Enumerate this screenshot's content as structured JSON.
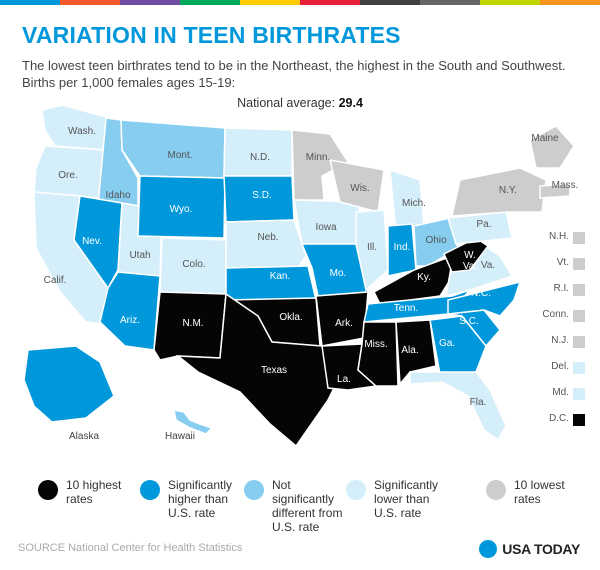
{
  "colors": {
    "highest": "#050505",
    "higher": "#0098db",
    "not_different": "#86cdf0",
    "lower": "#d4eefa",
    "lowest": "#cdcdcd",
    "title": "#0098db",
    "topbar": [
      "#0098db",
      "#f1592a",
      "#6d4ea0",
      "#00a859",
      "#ffcb05",
      "#e61e3c",
      "#414042",
      "#666666",
      "#c2d500",
      "#f7941d"
    ]
  },
  "header": {
    "title": "VARIATION IN TEEN BIRTHRATES",
    "subtitle_line1": "The lowest teen birthrates tend to be in the Northeast, the highest in the South and Southwest.",
    "subtitle_line2": "Births per 1,000 females ages 15-19:"
  },
  "national_average": {
    "label": "National average:",
    "value": "29.4"
  },
  "states": [
    {
      "label": "Wash.",
      "category": "lower"
    },
    {
      "label": "Ore.",
      "category": "lower"
    },
    {
      "label": "Calif.",
      "category": "lower"
    },
    {
      "label": "Idaho",
      "category": "not_different"
    },
    {
      "label": "Nev.",
      "category": "higher"
    },
    {
      "label": "Utah",
      "category": "lower"
    },
    {
      "label": "Ariz.",
      "category": "higher"
    },
    {
      "label": "Mont.",
      "category": "not_different"
    },
    {
      "label": "Wyo.",
      "category": "higher"
    },
    {
      "label": "Colo.",
      "category": "lower"
    },
    {
      "label": "N.M.",
      "category": "highest"
    },
    {
      "label": "N.D.",
      "category": "lower"
    },
    {
      "label": "S.D.",
      "category": "higher"
    },
    {
      "label": "Neb.",
      "category": "lower"
    },
    {
      "label": "Kan.",
      "category": "higher"
    },
    {
      "label": "Okla.",
      "category": "highest"
    },
    {
      "label": "Texas",
      "category": "highest"
    },
    {
      "label": "Minn.",
      "category": "lowest"
    },
    {
      "label": "Iowa",
      "category": "lower"
    },
    {
      "label": "Mo.",
      "category": "higher"
    },
    {
      "label": "Ark.",
      "category": "highest"
    },
    {
      "label": "La.",
      "category": "highest"
    },
    {
      "label": "Wis.",
      "category": "lowest"
    },
    {
      "label": "Ill.",
      "category": "lower"
    },
    {
      "label": "Mich.",
      "category": "lower"
    },
    {
      "label": "Ind.",
      "category": "higher"
    },
    {
      "label": "Ohio",
      "category": "not_different"
    },
    {
      "label": "Ky.",
      "category": "highest"
    },
    {
      "label": "Tenn.",
      "category": "higher"
    },
    {
      "label": "Miss.",
      "category": "highest"
    },
    {
      "label": "Ala.",
      "category": "highest"
    },
    {
      "label": "Ga.",
      "category": "higher"
    },
    {
      "label": "Fla.",
      "category": "lower"
    },
    {
      "label": "S.C.",
      "category": "higher"
    },
    {
      "label": "N.C.",
      "category": "higher"
    },
    {
      "label": "Va.",
      "category": "lower"
    },
    {
      "label": "W. Va.",
      "category": "highest"
    },
    {
      "label": "Pa.",
      "category": "lower"
    },
    {
      "label": "N.Y.",
      "category": "lowest"
    },
    {
      "label": "Maine",
      "category": "lowest"
    },
    {
      "label": "Mass.",
      "category": "lowest"
    },
    {
      "label": "Alaska",
      "category": "higher"
    },
    {
      "label": "Hawaii",
      "category": "not_different"
    }
  ],
  "small_states": [
    {
      "label": "N.H.",
      "category": "lowest"
    },
    {
      "label": "Vt.",
      "category": "lowest"
    },
    {
      "label": "R.I.",
      "category": "lowest"
    },
    {
      "label": "Conn.",
      "category": "lowest"
    },
    {
      "label": "N.J.",
      "category": "lowest"
    },
    {
      "label": "Del.",
      "category": "lower"
    },
    {
      "label": "Md.",
      "category": "lower"
    },
    {
      "label": "D.C.",
      "category": "highest"
    }
  ],
  "legend": [
    {
      "category": "highest",
      "line1": "10 highest",
      "line2": "rates",
      "line3": ""
    },
    {
      "category": "higher",
      "line1": "Significantly",
      "line2": "higher than",
      "line3": "U.S. rate"
    },
    {
      "category": "not_different",
      "line1": "Not significantly",
      "line2": "different from",
      "line3": "U.S. rate"
    },
    {
      "category": "lower",
      "line1": "Significantly",
      "line2": "lower than",
      "line3": "U.S. rate"
    },
    {
      "category": "lowest",
      "line1": "10 lowest",
      "line2": "rates",
      "line3": ""
    }
  ],
  "footer": {
    "source": "SOURCE National Center for Health Statistics",
    "brand": "USA TODAY",
    "brand_color": "#0098db"
  }
}
